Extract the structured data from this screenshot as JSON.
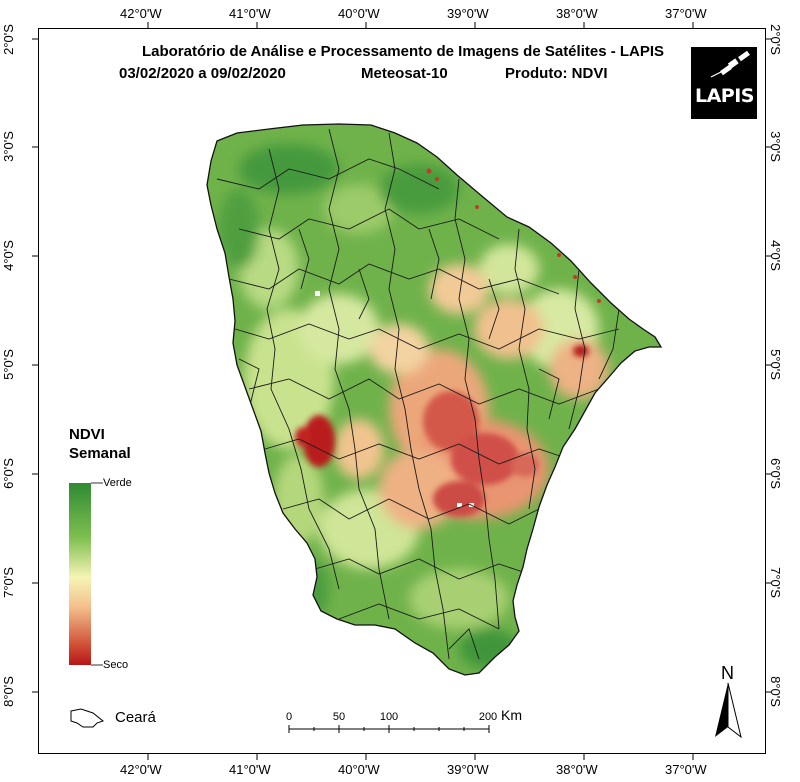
{
  "map": {
    "title_line1": "Laboratório de Análise e Processamento de Imagens de Satélites - LAPIS",
    "period": "03/02/2020  a 09/02/2020",
    "satellite": "Meteosat-10",
    "product": "Produto: NDVI",
    "logo_text": "LAPIS",
    "region": "Ceará"
  },
  "graticule": {
    "longitudes": [
      "42°0'W",
      "41°0'W",
      "40°0'W",
      "39°0'W",
      "38°0'W",
      "37°0'W"
    ],
    "latitudes": [
      "2°0'S",
      "3°0'S",
      "4°0'S",
      "5°0'S",
      "6°0'S",
      "7°0'S",
      "8°0'S"
    ]
  },
  "legend": {
    "title_line1": "NDVI",
    "title_line2": "Semanal",
    "high_label": "Verde",
    "low_label": "Seco",
    "colors": [
      "#2f8a32",
      "#7fbf50",
      "#f6f4b6",
      "#f3c08c",
      "#d2553a",
      "#b81616"
    ]
  },
  "scale_bar": {
    "ticks": [
      "0",
      "50",
      "100",
      "200"
    ],
    "unit": "Km"
  },
  "north_arrow": {
    "label": "N",
    "icon": "north-arrow-icon"
  }
}
